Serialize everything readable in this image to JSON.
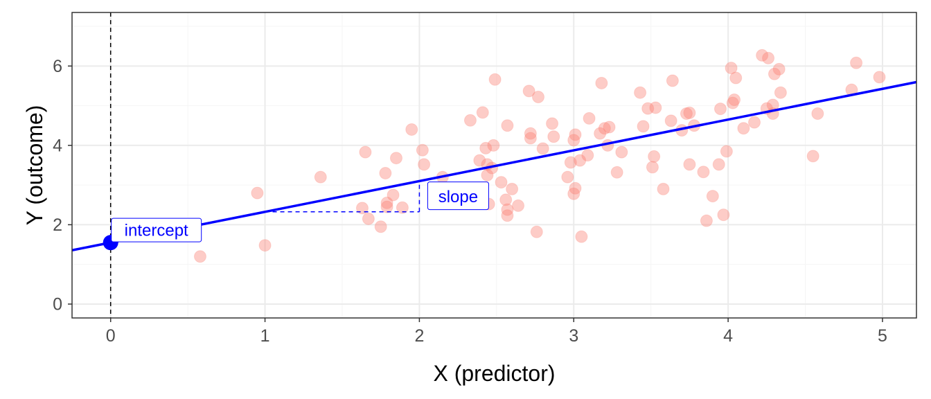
{
  "chart_data": {
    "type": "scatter",
    "xlabel": "X (predictor)",
    "ylabel": "Y (outcome)",
    "xlim": [
      -0.25,
      5.22
    ],
    "ylim": [
      -0.35,
      7.35
    ],
    "x_ticks": [
      0,
      1,
      2,
      3,
      4,
      5
    ],
    "y_ticks": [
      0,
      2,
      4,
      6
    ],
    "grid": true,
    "colors": {
      "points": "#fa8072",
      "line": "#0000ff",
      "annotation": "#0000ff",
      "grid_major": "#ebebeb",
      "grid_minor": "#f5f5f5",
      "panel_border": "#333333",
      "tick_text": "#4d4d4d"
    },
    "regression_line": {
      "intercept": 1.55,
      "slope": 0.775
    },
    "annotations": {
      "intercept": {
        "label": "intercept",
        "x": 0,
        "y": 1.55
      },
      "slope": {
        "label": "slope",
        "x_start": 1,
        "x_end": 2
      }
    },
    "points": [
      {
        "x": 0.58,
        "y": 1.2
      },
      {
        "x": 0.95,
        "y": 2.8
      },
      {
        "x": 1.0,
        "y": 1.48
      },
      {
        "x": 1.36,
        "y": 3.2
      },
      {
        "x": 1.63,
        "y": 2.42
      },
      {
        "x": 1.65,
        "y": 3.83
      },
      {
        "x": 1.67,
        "y": 2.15
      },
      {
        "x": 1.75,
        "y": 1.95
      },
      {
        "x": 1.78,
        "y": 3.3
      },
      {
        "x": 1.79,
        "y": 2.55
      },
      {
        "x": 1.79,
        "y": 2.45
      },
      {
        "x": 1.83,
        "y": 2.75
      },
      {
        "x": 1.85,
        "y": 3.68
      },
      {
        "x": 1.89,
        "y": 2.43
      },
      {
        "x": 1.95,
        "y": 4.4
      },
      {
        "x": 2.02,
        "y": 3.88
      },
      {
        "x": 2.03,
        "y": 3.52
      },
      {
        "x": 2.15,
        "y": 3.2
      },
      {
        "x": 2.33,
        "y": 4.63
      },
      {
        "x": 2.39,
        "y": 3.62
      },
      {
        "x": 2.41,
        "y": 4.83
      },
      {
        "x": 2.43,
        "y": 3.93
      },
      {
        "x": 2.44,
        "y": 3.52
      },
      {
        "x": 2.44,
        "y": 3.25
      },
      {
        "x": 2.45,
        "y": 2.52
      },
      {
        "x": 2.47,
        "y": 3.43
      },
      {
        "x": 2.48,
        "y": 4.0
      },
      {
        "x": 2.49,
        "y": 5.66
      },
      {
        "x": 2.53,
        "y": 3.07
      },
      {
        "x": 2.56,
        "y": 2.63
      },
      {
        "x": 2.57,
        "y": 2.38
      },
      {
        "x": 2.57,
        "y": 2.23
      },
      {
        "x": 2.57,
        "y": 4.5
      },
      {
        "x": 2.6,
        "y": 2.9
      },
      {
        "x": 2.64,
        "y": 2.48
      },
      {
        "x": 2.71,
        "y": 5.37
      },
      {
        "x": 2.72,
        "y": 4.18
      },
      {
        "x": 2.72,
        "y": 4.3
      },
      {
        "x": 2.76,
        "y": 1.82
      },
      {
        "x": 2.77,
        "y": 5.22
      },
      {
        "x": 2.8,
        "y": 3.92
      },
      {
        "x": 2.86,
        "y": 4.55
      },
      {
        "x": 2.87,
        "y": 4.22
      },
      {
        "x": 2.96,
        "y": 3.2
      },
      {
        "x": 2.98,
        "y": 3.57
      },
      {
        "x": 3.0,
        "y": 4.13
      },
      {
        "x": 3.0,
        "y": 2.78
      },
      {
        "x": 3.01,
        "y": 2.92
      },
      {
        "x": 3.01,
        "y": 4.27
      },
      {
        "x": 3.04,
        "y": 3.62
      },
      {
        "x": 3.05,
        "y": 1.7
      },
      {
        "x": 3.09,
        "y": 3.75
      },
      {
        "x": 3.1,
        "y": 4.68
      },
      {
        "x": 3.17,
        "y": 4.3
      },
      {
        "x": 3.18,
        "y": 5.57
      },
      {
        "x": 3.2,
        "y": 4.43
      },
      {
        "x": 3.22,
        "y": 4.0
      },
      {
        "x": 3.23,
        "y": 4.46
      },
      {
        "x": 3.28,
        "y": 3.32
      },
      {
        "x": 3.31,
        "y": 3.83
      },
      {
        "x": 3.43,
        "y": 5.33
      },
      {
        "x": 3.45,
        "y": 4.48
      },
      {
        "x": 3.48,
        "y": 4.93
      },
      {
        "x": 3.51,
        "y": 3.45
      },
      {
        "x": 3.52,
        "y": 3.72
      },
      {
        "x": 3.53,
        "y": 4.95
      },
      {
        "x": 3.58,
        "y": 2.9
      },
      {
        "x": 3.63,
        "y": 4.62
      },
      {
        "x": 3.64,
        "y": 5.63
      },
      {
        "x": 3.7,
        "y": 4.38
      },
      {
        "x": 3.73,
        "y": 4.8
      },
      {
        "x": 3.75,
        "y": 4.82
      },
      {
        "x": 3.75,
        "y": 3.52
      },
      {
        "x": 3.78,
        "y": 4.5
      },
      {
        "x": 3.84,
        "y": 3.33
      },
      {
        "x": 3.86,
        "y": 2.1
      },
      {
        "x": 3.9,
        "y": 2.72
      },
      {
        "x": 3.94,
        "y": 3.52
      },
      {
        "x": 3.95,
        "y": 4.92
      },
      {
        "x": 3.97,
        "y": 2.25
      },
      {
        "x": 3.99,
        "y": 3.85
      },
      {
        "x": 4.02,
        "y": 5.95
      },
      {
        "x": 4.03,
        "y": 5.07
      },
      {
        "x": 4.04,
        "y": 5.15
      },
      {
        "x": 4.05,
        "y": 5.7
      },
      {
        "x": 4.1,
        "y": 4.43
      },
      {
        "x": 4.17,
        "y": 4.58
      },
      {
        "x": 4.22,
        "y": 6.27
      },
      {
        "x": 4.25,
        "y": 4.93
      },
      {
        "x": 4.26,
        "y": 6.2
      },
      {
        "x": 4.29,
        "y": 5.02
      },
      {
        "x": 4.29,
        "y": 4.8
      },
      {
        "x": 4.3,
        "y": 5.8
      },
      {
        "x": 4.33,
        "y": 5.92
      },
      {
        "x": 4.34,
        "y": 5.33
      },
      {
        "x": 4.55,
        "y": 3.73
      },
      {
        "x": 4.58,
        "y": 4.8
      },
      {
        "x": 4.8,
        "y": 5.4
      },
      {
        "x": 4.83,
        "y": 6.08
      },
      {
        "x": 4.98,
        "y": 5.72
      }
    ]
  }
}
